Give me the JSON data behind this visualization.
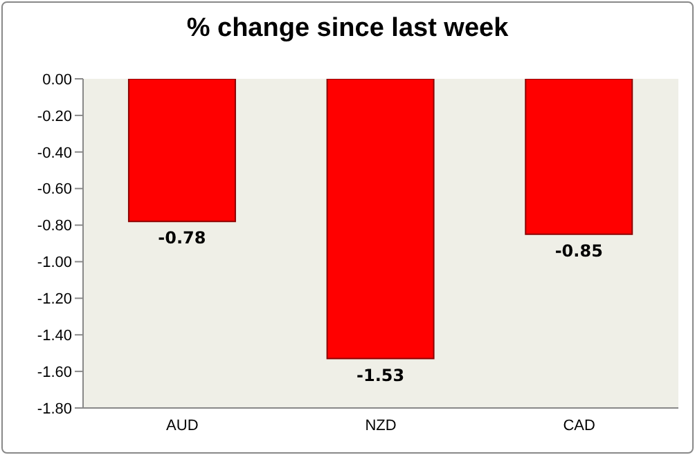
{
  "chart_data": {
    "type": "bar",
    "title": "% change since last week",
    "categories": [
      "AUD",
      "NZD",
      "CAD"
    ],
    "values": [
      -0.78,
      -1.53,
      -0.85
    ],
    "color": "#ff0000",
    "ylim": [
      -1.8,
      0
    ],
    "yticks": [
      {
        "value": 0,
        "label": "0.00"
      },
      {
        "value": -0.2,
        "label": "-0.20"
      },
      {
        "value": -0.4,
        "label": "-0.40"
      },
      {
        "value": -0.6,
        "label": "-0.60"
      },
      {
        "value": -0.8,
        "label": "-0.80"
      },
      {
        "value": -1,
        "label": "-1.00"
      },
      {
        "value": -1.2,
        "label": "-1.20"
      },
      {
        "value": -1.4,
        "label": "-1.40"
      },
      {
        "value": -1.6,
        "label": "-1.60"
      },
      {
        "value": -1.8,
        "label": "-1.80"
      }
    ],
    "data_labels": true,
    "grid": false,
    "legend": false
  }
}
